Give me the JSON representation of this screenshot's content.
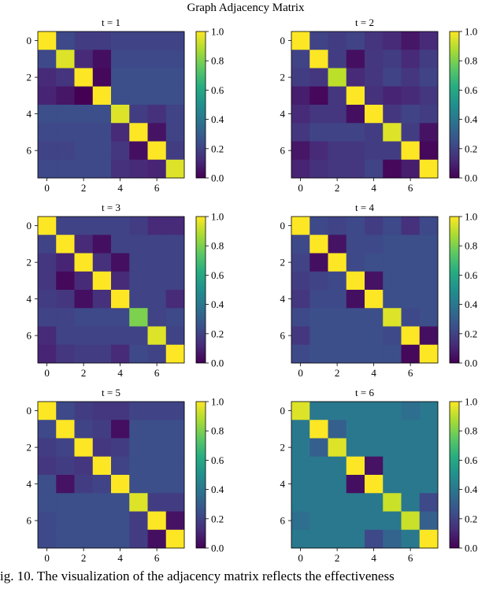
{
  "figure": {
    "title": "Graph Adjacency Matrix",
    "caption": "ig. 10.   The visualization of the adjacency matrix reflects the effectiveness"
  },
  "chart_data": [
    {
      "type": "heatmap",
      "title": "t = 1",
      "x_ticks": [
        0,
        2,
        4,
        6
      ],
      "y_ticks": [
        0,
        2,
        4,
        6
      ],
      "colorbar": {
        "range": [
          0,
          1
        ],
        "ticks": [
          "0.0",
          "0.2",
          "0.4",
          "0.6",
          "0.8",
          "1.0"
        ],
        "colormap": "viridis"
      },
      "matrix": [
        [
          1.0,
          0.22,
          0.18,
          0.18,
          0.2,
          0.2,
          0.2,
          0.2
        ],
        [
          0.22,
          0.95,
          0.12,
          0.04,
          0.22,
          0.22,
          0.22,
          0.22
        ],
        [
          0.12,
          0.15,
          1.0,
          0.02,
          0.24,
          0.24,
          0.24,
          0.24
        ],
        [
          0.1,
          0.06,
          0.0,
          1.0,
          0.24,
          0.24,
          0.24,
          0.24
        ],
        [
          0.24,
          0.24,
          0.24,
          0.24,
          0.95,
          0.18,
          0.14,
          0.2
        ],
        [
          0.22,
          0.22,
          0.22,
          0.22,
          0.12,
          1.0,
          0.05,
          0.2
        ],
        [
          0.2,
          0.2,
          0.22,
          0.22,
          0.16,
          0.04,
          1.0,
          0.18
        ],
        [
          0.22,
          0.22,
          0.22,
          0.22,
          0.14,
          0.12,
          0.1,
          0.95
        ]
      ]
    },
    {
      "type": "heatmap",
      "title": "t = 2",
      "x_ticks": [
        0,
        2,
        4,
        6
      ],
      "y_ticks": [
        0,
        2,
        4,
        6
      ],
      "colorbar": {
        "range": [
          0,
          1
        ],
        "ticks": [
          "0.0",
          "0.2",
          "0.4",
          "0.6",
          "0.8",
          "1.0"
        ],
        "colormap": "viridis"
      },
      "matrix": [
        [
          1.0,
          0.2,
          0.18,
          0.2,
          0.15,
          0.12,
          0.06,
          0.12
        ],
        [
          0.2,
          1.0,
          0.18,
          0.04,
          0.16,
          0.18,
          0.12,
          0.18
        ],
        [
          0.18,
          0.16,
          0.9,
          0.12,
          0.16,
          0.2,
          0.16,
          0.2
        ],
        [
          0.08,
          0.02,
          0.16,
          1.0,
          0.14,
          0.1,
          0.12,
          0.16
        ],
        [
          0.12,
          0.16,
          0.16,
          0.04,
          1.0,
          0.16,
          0.2,
          0.18
        ],
        [
          0.16,
          0.2,
          0.2,
          0.2,
          0.18,
          0.95,
          0.18,
          0.05
        ],
        [
          0.06,
          0.12,
          0.16,
          0.16,
          0.18,
          0.18,
          1.0,
          0.02
        ],
        [
          0.1,
          0.14,
          0.16,
          0.16,
          0.2,
          0.02,
          0.08,
          1.0
        ]
      ]
    },
    {
      "type": "heatmap",
      "title": "t = 3",
      "x_ticks": [
        0,
        2,
        4,
        6
      ],
      "y_ticks": [
        0,
        2,
        4,
        6
      ],
      "colorbar": {
        "range": [
          0,
          1
        ],
        "ticks": [
          "0.0",
          "0.2",
          "0.4",
          "0.6",
          "0.8",
          "1.0"
        ],
        "colormap": "viridis"
      },
      "matrix": [
        [
          1.0,
          0.2,
          0.2,
          0.2,
          0.2,
          0.18,
          0.12,
          0.12
        ],
        [
          0.2,
          1.0,
          0.12,
          0.04,
          0.2,
          0.2,
          0.2,
          0.2
        ],
        [
          0.16,
          0.1,
          1.0,
          0.14,
          0.04,
          0.2,
          0.2,
          0.2
        ],
        [
          0.16,
          0.02,
          0.12,
          1.0,
          0.12,
          0.2,
          0.2,
          0.2
        ],
        [
          0.18,
          0.16,
          0.04,
          0.14,
          1.0,
          0.2,
          0.2,
          0.12
        ],
        [
          0.2,
          0.2,
          0.22,
          0.22,
          0.22,
          0.8,
          0.2,
          0.22
        ],
        [
          0.12,
          0.2,
          0.2,
          0.2,
          0.2,
          0.2,
          0.95,
          0.2
        ],
        [
          0.1,
          0.16,
          0.18,
          0.18,
          0.12,
          0.22,
          0.2,
          1.0
        ]
      ]
    },
    {
      "type": "heatmap",
      "title": "t = 4",
      "x_ticks": [
        0,
        2,
        4,
        6
      ],
      "y_ticks": [
        0,
        2,
        4,
        6
      ],
      "colorbar": {
        "range": [
          0,
          1
        ],
        "ticks": [
          "0.0",
          "0.2",
          "0.4",
          "0.6",
          "0.8",
          "1.0"
        ],
        "colormap": "viridis"
      },
      "matrix": [
        [
          1.0,
          0.22,
          0.2,
          0.22,
          0.18,
          0.22,
          0.14,
          0.22
        ],
        [
          0.22,
          1.0,
          0.05,
          0.22,
          0.22,
          0.24,
          0.24,
          0.24
        ],
        [
          0.2,
          0.04,
          1.0,
          0.22,
          0.24,
          0.24,
          0.24,
          0.24
        ],
        [
          0.18,
          0.2,
          0.22,
          1.0,
          0.05,
          0.24,
          0.24,
          0.24
        ],
        [
          0.16,
          0.22,
          0.22,
          0.04,
          1.0,
          0.24,
          0.24,
          0.24
        ],
        [
          0.22,
          0.24,
          0.24,
          0.24,
          0.24,
          0.95,
          0.22,
          0.24
        ],
        [
          0.16,
          0.24,
          0.24,
          0.24,
          0.24,
          0.22,
          1.0,
          0.04
        ],
        [
          0.22,
          0.24,
          0.24,
          0.24,
          0.24,
          0.24,
          0.02,
          1.0
        ]
      ]
    },
    {
      "type": "heatmap",
      "title": "t = 5",
      "x_ticks": [
        0,
        2,
        4,
        6
      ],
      "y_ticks": [
        0,
        2,
        4,
        6
      ],
      "colorbar": {
        "range": [
          0,
          1
        ],
        "ticks": [
          "0.0",
          "0.2",
          "0.4",
          "0.6",
          "0.8",
          "1.0"
        ],
        "colormap": "viridis"
      },
      "matrix": [
        [
          1.0,
          0.22,
          0.18,
          0.16,
          0.16,
          0.2,
          0.2,
          0.2
        ],
        [
          0.22,
          1.0,
          0.2,
          0.18,
          0.04,
          0.24,
          0.24,
          0.24
        ],
        [
          0.18,
          0.2,
          1.0,
          0.16,
          0.18,
          0.24,
          0.24,
          0.24
        ],
        [
          0.16,
          0.18,
          0.16,
          1.0,
          0.2,
          0.24,
          0.24,
          0.24
        ],
        [
          0.24,
          0.05,
          0.18,
          0.2,
          1.0,
          0.24,
          0.24,
          0.24
        ],
        [
          0.24,
          0.24,
          0.24,
          0.24,
          0.24,
          0.95,
          0.18,
          0.18
        ],
        [
          0.22,
          0.24,
          0.24,
          0.24,
          0.24,
          0.18,
          1.0,
          0.05
        ],
        [
          0.22,
          0.24,
          0.24,
          0.24,
          0.24,
          0.18,
          0.04,
          1.0
        ]
      ]
    },
    {
      "type": "heatmap",
      "title": "t = 6",
      "x_ticks": [
        0,
        2,
        4,
        6
      ],
      "y_ticks": [
        0,
        2,
        4,
        6
      ],
      "colorbar": {
        "range": [
          0,
          1
        ],
        "ticks": [
          "0.0",
          "0.2",
          "0.4",
          "0.6",
          "0.8",
          "1.0"
        ],
        "colormap": "viridis"
      },
      "matrix": [
        [
          0.95,
          0.4,
          0.4,
          0.4,
          0.4,
          0.4,
          0.36,
          0.4
        ],
        [
          0.4,
          1.0,
          0.3,
          0.4,
          0.4,
          0.4,
          0.4,
          0.4
        ],
        [
          0.4,
          0.3,
          0.95,
          0.4,
          0.4,
          0.4,
          0.4,
          0.4
        ],
        [
          0.4,
          0.4,
          0.4,
          1.0,
          0.05,
          0.4,
          0.4,
          0.4
        ],
        [
          0.4,
          0.4,
          0.4,
          0.04,
          1.0,
          0.4,
          0.4,
          0.4
        ],
        [
          0.4,
          0.4,
          0.4,
          0.4,
          0.4,
          0.92,
          0.4,
          0.22
        ],
        [
          0.36,
          0.4,
          0.4,
          0.4,
          0.4,
          0.4,
          0.92,
          0.3
        ],
        [
          0.4,
          0.4,
          0.4,
          0.4,
          0.22,
          0.32,
          0.4,
          1.0
        ]
      ]
    }
  ]
}
